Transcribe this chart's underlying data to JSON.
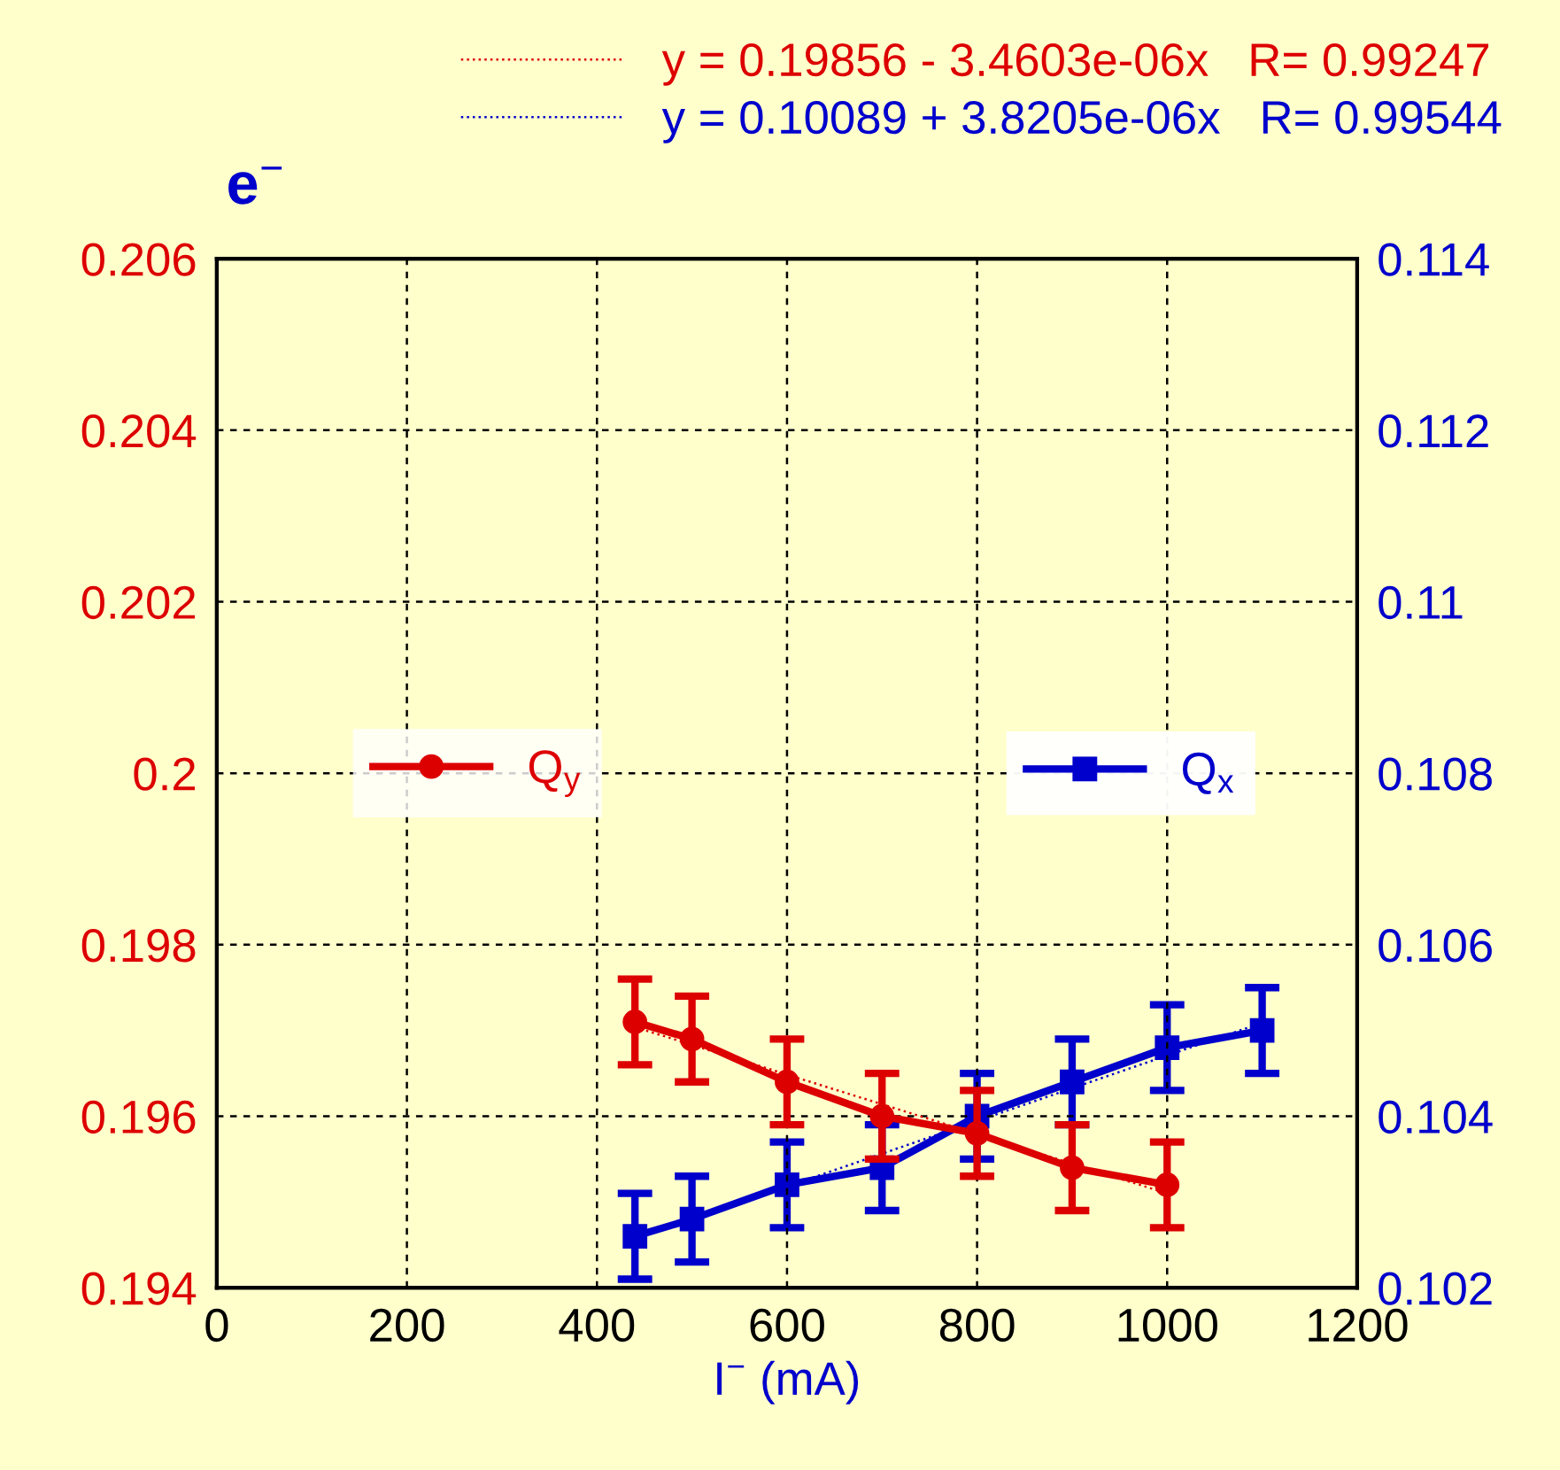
{
  "chart_data": {
    "type": "line",
    "title": "e$^{−}$",
    "xlabel": "I$^{−}$ (mA)",
    "xlim": [
      0,
      1200
    ],
    "xticks": [
      0,
      200,
      400,
      600,
      800,
      1000,
      1200
    ],
    "ylim": [
      0.194,
      0.206
    ],
    "yticks": [
      0.194,
      0.196,
      0.198,
      0.2,
      0.202,
      0.204,
      0.206
    ],
    "y2lim": [
      0.102,
      0.114
    ],
    "y2ticks": [
      0.102,
      0.104,
      0.106,
      0.108,
      0.11,
      0.112,
      0.114
    ],
    "grid": true,
    "legend": "center",
    "series": [
      {
        "name": "Q$_{y}$",
        "color": "#dd0000",
        "axis": "y",
        "marker": "circle",
        "x": [
          440,
          500,
          600,
          700,
          800,
          900,
          1000
        ],
        "values": [
          0.1971,
          0.1969,
          0.1964,
          0.196,
          0.1958,
          0.1954,
          0.1952
        ],
        "errors": [
          0.0005,
          0.0005,
          0.0005,
          0.0005,
          0.0005,
          0.0005,
          0.0005
        ]
      },
      {
        "name": "Q$_{x}$",
        "color": "#0000cc",
        "axis": "y2",
        "marker": "square",
        "x": [
          440,
          500,
          600,
          700,
          800,
          900,
          1000,
          1100
        ],
        "values": [
          0.1026,
          0.1028,
          0.1032,
          0.1034,
          0.104,
          0.1044,
          0.1048,
          0.105
        ],
        "errors": [
          0.0005,
          0.0005,
          0.0005,
          0.0005,
          0.0005,
          0.0005,
          0.0005,
          0.0005
        ]
      },
      {
        "name": "y = 0.19856 - 3.4603e-06x   R= 0.99247",
        "color": "#dd0000",
        "axis": "y",
        "marker": "none",
        "line_style": "dotted",
        "x": [
          440,
          1000
        ],
        "values": [
          0.19704,
          0.1951
        ]
      },
      {
        "name": "y = 0.10089 + 3.8205e-06x   R= 0.99544",
        "color": "#0000cc",
        "axis": "y2",
        "marker": "none",
        "line_style": "dotted",
        "x": [
          440,
          1100
        ],
        "values": [
          0.10257,
          0.10509
        ]
      }
    ]
  }
}
